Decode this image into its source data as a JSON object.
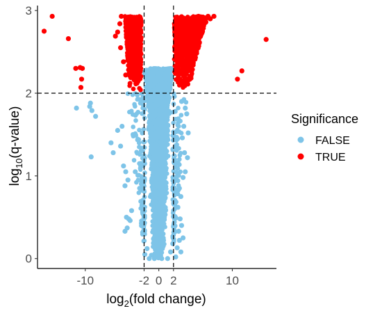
{
  "chart_data": {
    "type": "scatter",
    "title": "",
    "xlabel_parts": [
      "log",
      "2",
      "(fold change)"
    ],
    "ylabel_parts": [
      "log",
      "10",
      "(q-value)"
    ],
    "xlim": [
      -16.5,
      16
    ],
    "ylim": [
      -0.12,
      3.06
    ],
    "x_ticks": [
      -10,
      -2,
      0,
      2,
      10
    ],
    "y_ticks": [
      0,
      1,
      2,
      3
    ],
    "thresholds": {
      "x": [
        -2,
        2
      ],
      "y": 2
    },
    "grid": false,
    "legend": {
      "position": "right",
      "title": "Significance",
      "entries": [
        {
          "label": "FALSE",
          "color": "#7ec4e8"
        },
        {
          "label": "TRUE",
          "color": "#ff0000"
        }
      ]
    },
    "series": [
      {
        "name": "FALSE",
        "color": "#7ec4e8",
        "points": [
          [
            -11.2,
            1.82
          ],
          [
            -9.4,
            1.84
          ],
          [
            -9.3,
            1.88
          ],
          [
            -9.1,
            1.79
          ],
          [
            -8.6,
            1.72
          ],
          [
            -6.5,
            1.4
          ],
          [
            -9.2,
            1.23
          ],
          [
            -6.2,
            1.28
          ],
          [
            -5.6,
            1.55
          ],
          [
            -5.2,
            1.36
          ],
          [
            -5.0,
            1.6
          ],
          [
            -4.8,
            1.12
          ],
          [
            -4.5,
            1.05
          ],
          [
            -4.2,
            0.95
          ],
          [
            -4.6,
            0.88
          ],
          [
            -4.4,
            0.5
          ],
          [
            -4.1,
            0.48
          ],
          [
            -3.9,
            0.46
          ],
          [
            -3.7,
            0.58
          ],
          [
            -4.6,
            0.33
          ],
          [
            -4.3,
            0.37
          ],
          [
            -2.1,
            0.33
          ],
          [
            -2.6,
            0.85
          ],
          [
            -3.5,
            1.5
          ],
          [
            -3.2,
            1.05
          ],
          [
            3.1,
            1.9
          ],
          [
            3.6,
            1.82
          ],
          [
            3.8,
            1.75
          ],
          [
            3.4,
            1.6
          ],
          [
            4.0,
            1.52
          ],
          [
            3.2,
            1.46
          ],
          [
            3.5,
            1.28
          ],
          [
            3.9,
            1.22
          ],
          [
            3.6,
            1.05
          ],
          [
            3.3,
            0.98
          ],
          [
            2.8,
            0.85
          ],
          [
            3.0,
            0.75
          ],
          [
            2.6,
            0.62
          ],
          [
            2.9,
            0.48
          ],
          [
            3.1,
            0.4
          ],
          [
            2.7,
            0.33
          ],
          [
            3.3,
            0.25
          ],
          [
            2.5,
            0.13
          ],
          [
            3.0,
            0.08
          ],
          [
            2.3,
            0.02
          ],
          [
            -1.9,
            0.05
          ],
          [
            -1.3,
            0.0
          ],
          [
            -0.6,
            0.0
          ],
          [
            0.4,
            0.0
          ],
          [
            1.2,
            0.0
          ],
          [
            1.6,
            0.08
          ],
          [
            2.8,
            0.22
          ],
          [
            1.9,
            0.18
          ],
          [
            -1.6,
            0.12
          ],
          [
            -1.0,
            0.04
          ]
        ]
      },
      {
        "name": "TRUE",
        "color": "#ff0000",
        "points": [
          [
            -15.6,
            2.75
          ],
          [
            -14.5,
            2.93
          ],
          [
            -12.3,
            2.66
          ],
          [
            -11.3,
            2.3
          ],
          [
            -10.7,
            2.31
          ],
          [
            -10.5,
            2.17
          ],
          [
            -10.6,
            2.07
          ],
          [
            -10.4,
            2.3
          ],
          [
            10.7,
            2.17
          ],
          [
            11.3,
            2.27
          ],
          [
            14.6,
            2.65
          ],
          [
            -5.1,
            2.93
          ],
          [
            -5.3,
            2.84
          ],
          [
            -5.6,
            2.74
          ],
          [
            -5.9,
            2.69
          ],
          [
            -5.2,
            2.55
          ],
          [
            -4.8,
            2.38
          ],
          [
            -4.5,
            2.22
          ],
          [
            5.4,
            2.93
          ],
          [
            6.0,
            2.92
          ],
          [
            6.7,
            2.93
          ],
          [
            7.5,
            2.93
          ],
          [
            7.0,
            2.9
          ],
          [
            6.4,
            2.86
          ],
          [
            5.8,
            2.79
          ],
          [
            5.5,
            2.72
          ],
          [
            5.0,
            2.62
          ],
          [
            4.7,
            2.45
          ],
          [
            4.4,
            2.31
          ],
          [
            4.1,
            2.18
          ]
        ]
      }
    ]
  }
}
